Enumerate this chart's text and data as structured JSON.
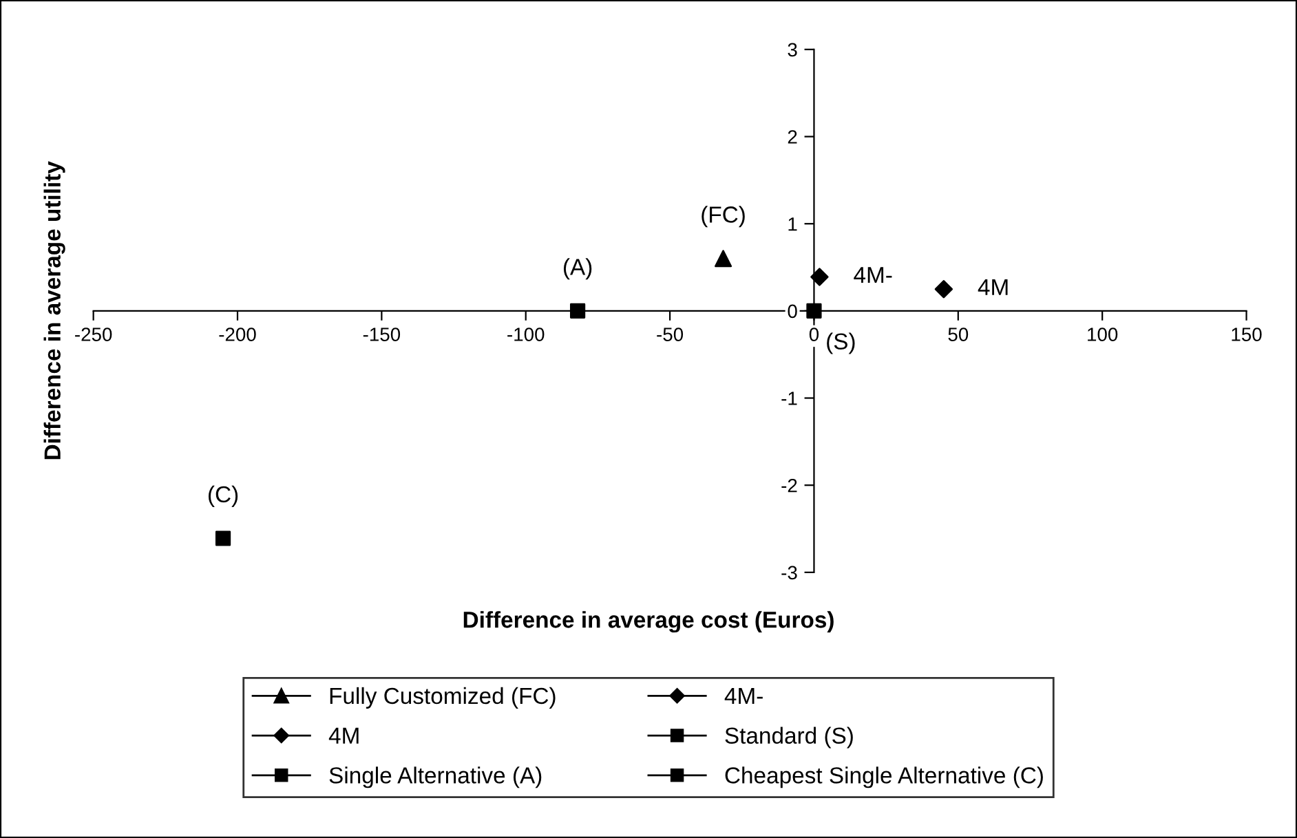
{
  "chart_data": {
    "type": "scatter",
    "xlabel": "Difference in average cost (Euros)",
    "ylabel": "Difference in average utility",
    "xlim": [
      -250,
      150
    ],
    "xticks": [
      -250,
      -200,
      -150,
      -100,
      -50,
      0,
      50,
      100,
      150
    ],
    "ylim": [
      -3,
      3
    ],
    "yticks": [
      -3,
      -2,
      -1,
      0,
      1,
      2,
      3
    ],
    "grid": false,
    "legend": "bottom",
    "series": [
      {
        "name": "Fully Customized (FC)",
        "color": "#000000",
        "marker": "triangle",
        "x": [
          -31.5
        ],
        "values": [
          0.6
        ]
      },
      {
        "name": "4M-",
        "color": "#000000",
        "marker": "diamond",
        "x": [
          1.9
        ],
        "values": [
          0.39
        ]
      },
      {
        "name": "4M",
        "color": "#000000",
        "marker": "diamond",
        "x": [
          45
        ],
        "values": [
          0.25
        ]
      },
      {
        "name": "Standard (S)",
        "color": "#000000",
        "marker": "square",
        "x": [
          0
        ],
        "values": [
          0
        ]
      },
      {
        "name": "Single Alternative (A)",
        "color": "#000000",
        "marker": "square",
        "x": [
          -82
        ],
        "values": [
          0
        ]
      },
      {
        "name": "Cheapest Single Alternative (C)",
        "color": "#000000",
        "marker": "square",
        "x": [
          -205
        ],
        "values": [
          -2.61
        ]
      }
    ],
    "annotations": [
      {
        "text": "(FC)",
        "x": -31.5,
        "y": 0.6
      },
      {
        "text": "4M-",
        "x": 1.9,
        "y": 0.39
      },
      {
        "text": "4M",
        "x": 45,
        "y": 0.25
      },
      {
        "text": "(S)",
        "x": 0,
        "y": 0
      },
      {
        "text": "(A)",
        "x": -82,
        "y": 0
      },
      {
        "text": "(C)",
        "x": -205,
        "y": -2.61
      }
    ]
  }
}
